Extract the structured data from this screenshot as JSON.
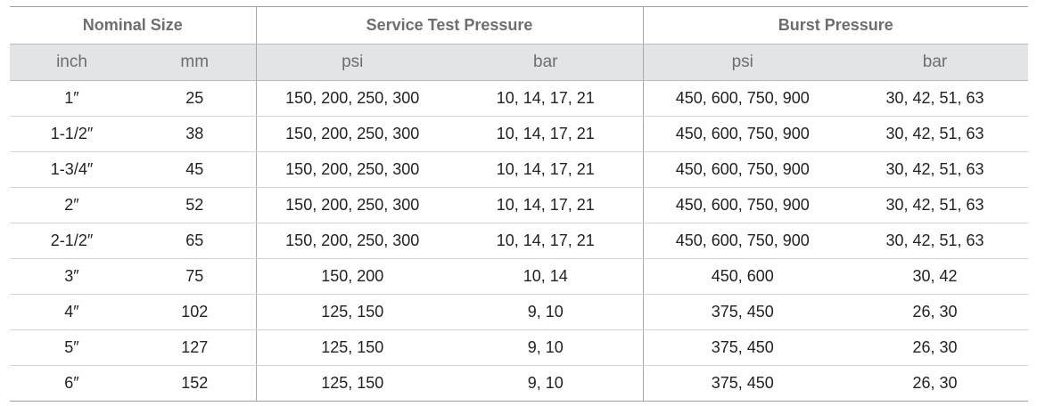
{
  "table": {
    "group_headers": [
      "Nominal Size",
      "Service Test Pressure",
      "Burst Pressure"
    ],
    "unit_headers": [
      "inch",
      "mm",
      "psi",
      "bar",
      "psi",
      "bar"
    ],
    "rows": [
      [
        "1″",
        "25",
        "150, 200, 250, 300",
        "10, 14, 17, 21",
        "450, 600, 750, 900",
        "30, 42, 51, 63"
      ],
      [
        "1-1/2″",
        "38",
        "150, 200, 250, 300",
        "10, 14, 17, 21",
        "450, 600, 750, 900",
        "30, 42, 51, 63"
      ],
      [
        "1-3/4″",
        "45",
        "150, 200, 250, 300",
        "10, 14, 17, 21",
        "450, 600, 750, 900",
        "30, 42, 51, 63"
      ],
      [
        "2″",
        "52",
        "150, 200, 250, 300",
        "10, 14, 17, 21",
        "450, 600, 750, 900",
        "30, 42, 51, 63"
      ],
      [
        "2-1/2″",
        "65",
        "150, 200, 250, 300",
        "10, 14, 17, 21",
        "450, 600, 750, 900",
        "30, 42, 51, 63"
      ],
      [
        "3″",
        "75",
        "150, 200",
        "10, 14",
        "450, 600",
        "30, 42"
      ],
      [
        "4″",
        "102",
        "125, 150",
        "9, 10",
        "375, 450",
        "26, 30"
      ],
      [
        "5″",
        "127",
        "125, 150",
        "9, 10",
        "375, 450",
        "26, 30"
      ],
      [
        "6″",
        "152",
        "125, 150",
        "9, 10",
        "375, 450",
        "26, 30"
      ]
    ]
  },
  "colors": {
    "header_text": "#6d6e71",
    "unit_row_bg": "#e3e4e5",
    "body_text": "#231f20",
    "rule": "#b9bbbd"
  }
}
